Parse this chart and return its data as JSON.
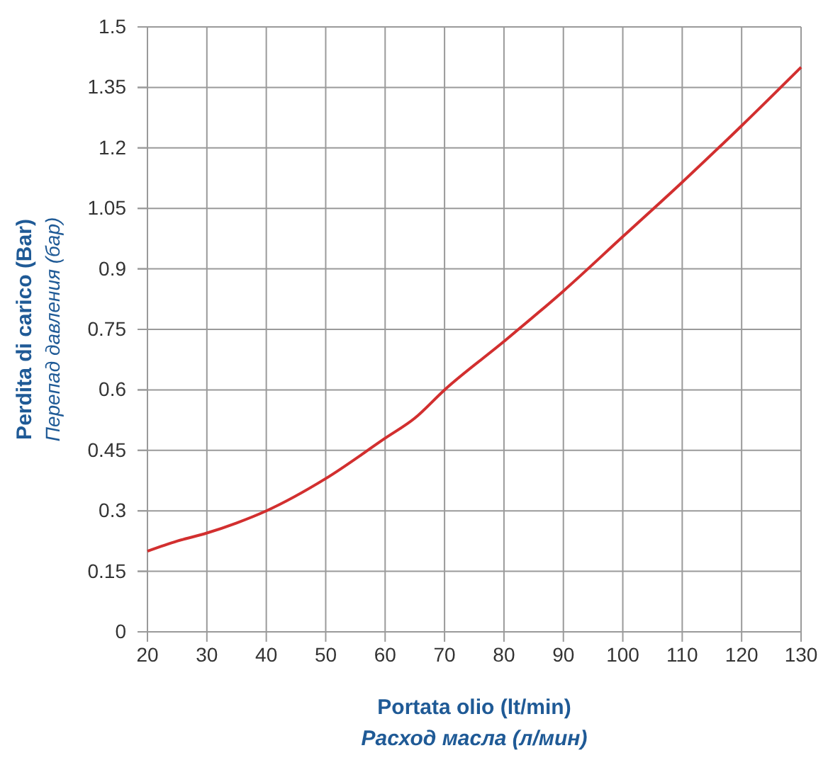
{
  "chart_data": {
    "type": "line",
    "xlabel": "Portata olio (lt/min)\nРасход масла (л/мин)",
    "ylabel": "Perdita di carico (Bar)\nПерепад давления (бар)",
    "x": [
      20,
      25,
      30,
      35,
      40,
      50,
      60,
      65,
      70,
      80,
      90,
      100,
      110,
      120,
      130
    ],
    "series": [
      {
        "color": "#d22f2f",
        "values": [
          0.2,
          0.225,
          0.245,
          0.27,
          0.3,
          0.38,
          0.48,
          0.53,
          0.6,
          0.72,
          0.845,
          0.98,
          1.115,
          1.255,
          1.4
        ]
      }
    ],
    "xlim": [
      20,
      130
    ],
    "xticks": [
      20,
      30,
      40,
      50,
      60,
      70,
      80,
      90,
      100,
      110,
      120,
      130
    ],
    "ylim": [
      0,
      1.5
    ],
    "yticks": [
      0,
      0.15,
      0.3,
      0.45,
      0.6,
      0.75,
      0.9,
      1.05,
      1.2,
      1.35,
      1.5
    ],
    "grid": true,
    "marker": "none",
    "line_style": "solid"
  }
}
